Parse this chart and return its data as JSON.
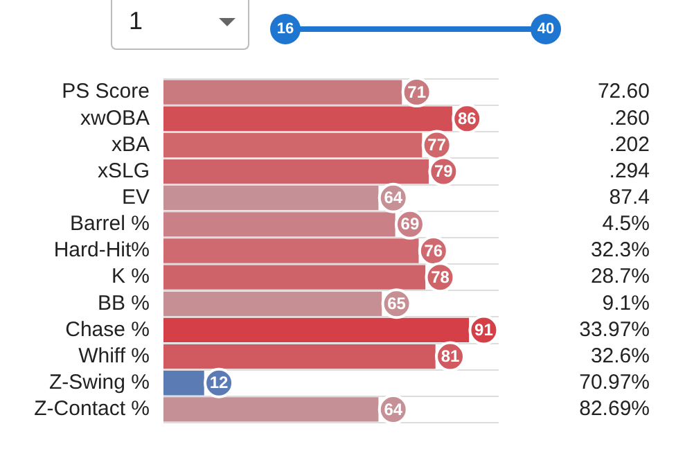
{
  "chart_data": {
    "type": "bar",
    "orientation": "horizontal",
    "categories": [
      "PS Score",
      "xwOBA",
      "xBA",
      "xSLG",
      "EV",
      "Barrel %",
      "Hard-Hit%",
      "K %",
      "BB %",
      "Chase %",
      "Whiff %",
      "Z-Swing %",
      "Z-Contact %"
    ],
    "values": [
      71,
      86,
      77,
      79,
      64,
      69,
      76,
      78,
      65,
      91,
      81,
      12,
      64
    ],
    "colors": [
      "#c87a7e",
      "#d24f55",
      "#cf676b",
      "#ce6268",
      "#c69196",
      "#c98187",
      "#cf6a70",
      "#ce6469",
      "#c68f94",
      "#d53f47",
      "#d15a61",
      "#5b7bb5",
      "#c69196"
    ],
    "data_labels": true,
    "grid": "y",
    "tick_labels": "y",
    "legend": false,
    "annotations": [
      "1",
      "16",
      "40",
      "72.60",
      ".260",
      ".202",
      ".294",
      "87.4",
      "4.5%",
      "32.3%",
      "28.7%",
      "9.1%",
      "33.97%",
      "32.6%",
      "70.97%",
      "82.69%"
    ]
  }
}
